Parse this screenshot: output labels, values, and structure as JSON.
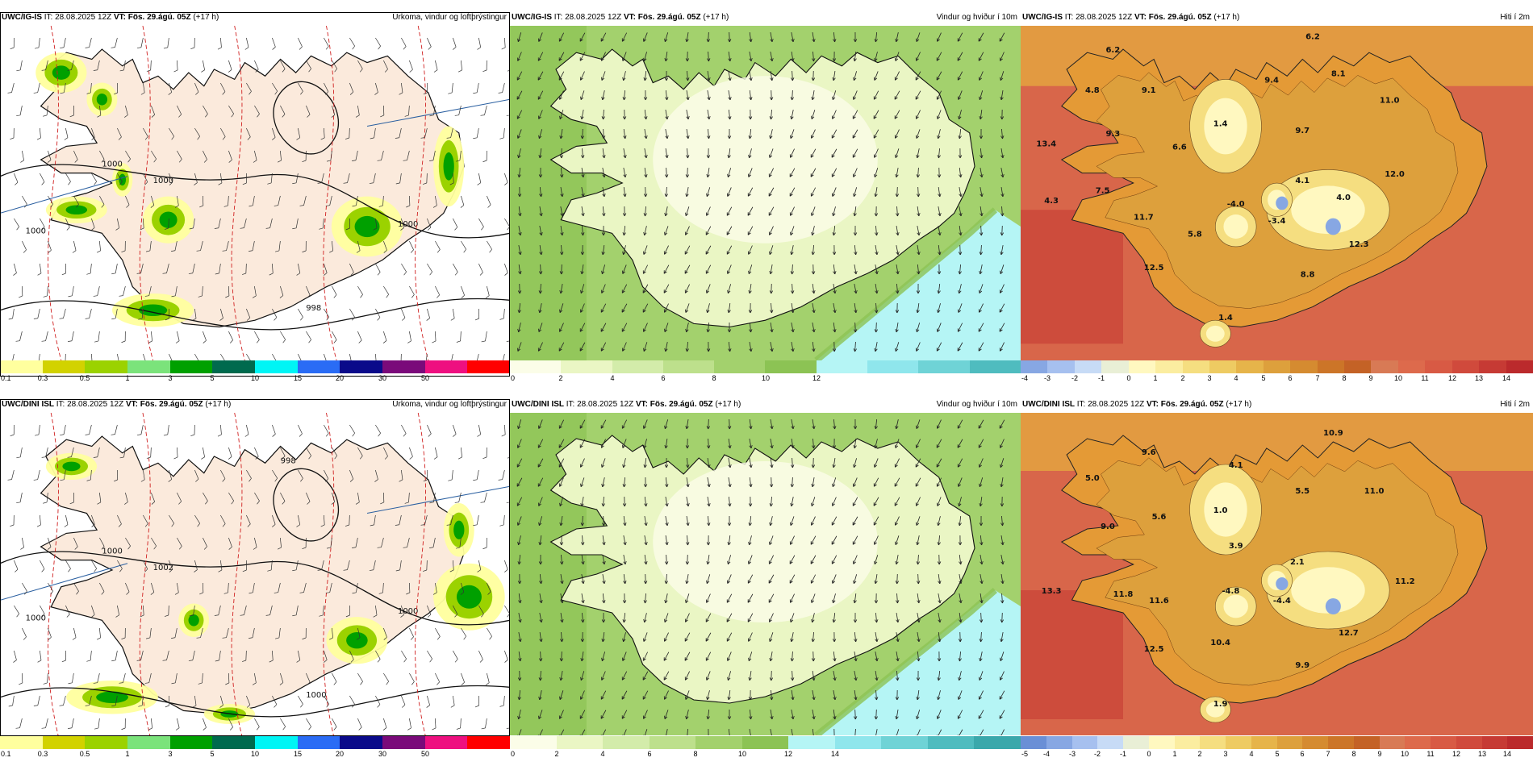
{
  "rows": [
    {
      "model": "UWC/IG-IS",
      "it_label": "IT: 28.08.2025 12Z",
      "vt_label": "VT: Fös. 29.ágú. 05Z",
      "lead": "(+17 h)",
      "precip": {
        "title": "Úrkoma, vindur og loftþrýstingur",
        "isobars": [
          "1000",
          "1000",
          "1000",
          "1000",
          "998"
        ],
        "colorbar_labels": [
          "0.1",
          "0.3",
          "0.5",
          "1",
          "3",
          "5",
          "10",
          "15",
          "20",
          "30",
          "50"
        ]
      },
      "wind": {
        "title": "Vindur og hviður í 10m",
        "colorbar_labels": [
          "0",
          "2",
          "4",
          "6",
          "8",
          "10",
          "12"
        ]
      },
      "temp": {
        "title": "Hiti í 2m",
        "colorbar_labels": [
          "-4",
          "-3",
          "-2",
          "-1",
          "0",
          "1",
          "2",
          "3",
          "4",
          "5",
          "6",
          "7",
          "8",
          "9",
          "10",
          "11",
          "12",
          "13",
          "14"
        ],
        "point_labels": [
          "6.2",
          "6.2",
          "4.8",
          "9.1",
          "9.4",
          "8.1",
          "11.0",
          "13.4",
          "9.3",
          "1.4",
          "9.7",
          "6.6",
          "12.0",
          "7.5",
          "4.1",
          "4.3",
          "-4.0",
          "4.0",
          "11.7",
          "5.8",
          "-3.4",
          "12.3",
          "12.5",
          "8.8",
          "1.4"
        ]
      }
    },
    {
      "model": "UWC/DINI ISL",
      "it_label": "IT: 28.08.2025 12Z",
      "vt_label": "VT: Fös. 29.ágú. 05Z",
      "lead": "(+17 h)",
      "precip": {
        "title": "Úrkoma, vindur og loftþrýstingur",
        "isobars": [
          "1002",
          "1000",
          "1000",
          "1000",
          "1000",
          "998"
        ],
        "colorbar_labels": [
          "0.1",
          "0.3",
          "0.5",
          "1",
          "3",
          "5",
          "10",
          "15",
          "20",
          "30",
          "50"
        ]
      },
      "wind": {
        "title": "Vindur og hviður í 10m",
        "colorbar_labels": [
          "0",
          "2",
          "4",
          "6",
          "8",
          "10",
          "12",
          "14"
        ]
      },
      "temp": {
        "title": "Hiti í 2m",
        "colorbar_labels": [
          "-5",
          "-4",
          "-3",
          "-2",
          "-1",
          "0",
          "1",
          "2",
          "3",
          "4",
          "5",
          "6",
          "7",
          "8",
          "9",
          "10",
          "11",
          "12",
          "13",
          "14"
        ],
        "point_labels": [
          "10.9",
          "9.6",
          "4.1",
          "5.0",
          "11.0",
          "5.5",
          "1.0",
          "5.6",
          "9.0",
          "3.9",
          "2.1",
          "13.3",
          "11.8",
          "11.6",
          "-4.8",
          "-4.4",
          "11.2",
          "12.5",
          "10.4",
          "12.7",
          "9.9",
          "1.9"
        ]
      }
    }
  ],
  "colors": {
    "precip_scale": [
      "#ffff9e",
      "#d2d200",
      "#9bd200",
      "#7be37b",
      "#00a000",
      "#006a4e",
      "#00f5f5",
      "#2a6cf5",
      "#0a0a8a",
      "#7a0a7a",
      "#ee1080",
      "#ff0000"
    ],
    "wind_scale_top": [
      "#fbfde8",
      "#eaf6c4",
      "#d3ecaa",
      "#bde08c",
      "#a3d16d",
      "#8cc354",
      "#b5f5f5",
      "#8fe6ec",
      "#6fd3d6",
      "#4fbcbf"
    ],
    "wind_scale_bottom": [
      "#fbfde8",
      "#eaf6c4",
      "#d3ecaa",
      "#bde08c",
      "#a3d16d",
      "#8cc354",
      "#b5f5f5",
      "#8fe6ec",
      "#6fd3d6",
      "#4fbcbf",
      "#3aa8ab"
    ],
    "temp_scale": [
      "#6a8fd6",
      "#87a7e3",
      "#a6c0ef",
      "#c7dbf6",
      "#e9efd6",
      "#fff8c0",
      "#fbeda0",
      "#f5de80",
      "#eecb62",
      "#e6b44a",
      "#dda03c",
      "#d58b30",
      "#cc7528",
      "#c46226",
      "#d87a55",
      "#dd6a4c",
      "#d85a44",
      "#d04a3c",
      "#c63a34",
      "#bb2a2c"
    ],
    "land_precip": "#fbeadc",
    "sea_precip": "#ffffff",
    "temp_land": "#e49a36",
    "temp_sea": "#d8664a"
  }
}
